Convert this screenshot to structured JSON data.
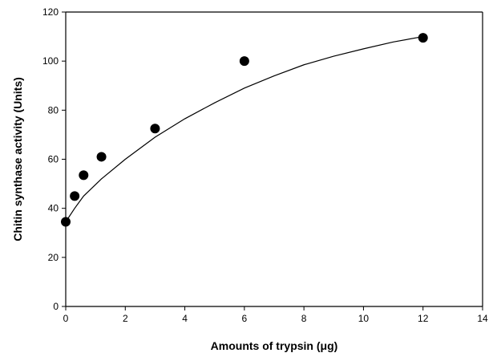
{
  "chart_data": {
    "type": "scatter",
    "title": "",
    "xlabel": "Amounts of trypsin (μg)",
    "ylabel": "Chitin synthase activity (Units)",
    "xlim": [
      0,
      14
    ],
    "ylim": [
      0,
      120
    ],
    "xticks": [
      0,
      2,
      4,
      6,
      8,
      10,
      12,
      14
    ],
    "yticks": [
      0,
      20,
      40,
      60,
      80,
      100,
      120
    ],
    "grid": false,
    "legend": "none",
    "series": [
      {
        "marker": "filled-circle",
        "color": "#000000",
        "x": [
          0,
          0.3,
          0.6,
          1.2,
          3,
          6,
          12
        ],
        "y": [
          34.5,
          45,
          53.5,
          61,
          72.5,
          100,
          109.5
        ]
      }
    ],
    "fit_curve": {
      "style": "solid",
      "color": "#000000",
      "x": [
        0,
        0.3,
        0.6,
        1.2,
        2,
        3,
        4,
        5,
        6,
        7,
        8,
        9,
        10,
        11,
        12
      ],
      "y": [
        34.5,
        40,
        45,
        52,
        60,
        69,
        76.5,
        83,
        89,
        94,
        98.5,
        102,
        105,
        107.8,
        110
      ]
    }
  }
}
